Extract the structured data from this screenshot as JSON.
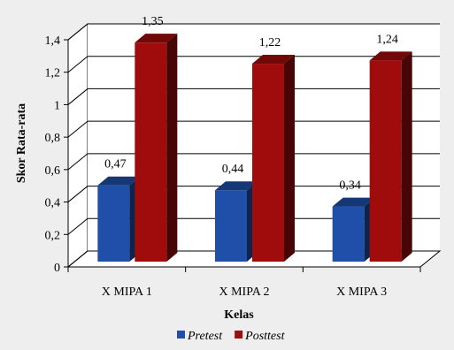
{
  "chart_data": {
    "type": "bar",
    "categories": [
      "X MIPA 1",
      "X MIPA 2",
      "X MIPA 3"
    ],
    "series": [
      {
        "name": "Pretest",
        "values": [
          0.47,
          0.44,
          0.34
        ],
        "labels": [
          "0,47",
          "0,44",
          "0,34"
        ],
        "color": "#1f4fa8"
      },
      {
        "name": "Posttest",
        "values": [
          1.35,
          1.22,
          1.24
        ],
        "labels": [
          "1,35",
          "1,22",
          "1,24"
        ],
        "color": "#a00c0c"
      }
    ],
    "xlabel": "Kelas",
    "ylabel": "Skor Rata-rata",
    "ylim": [
      0,
      1.4
    ],
    "yticks": [
      "0",
      "0,2",
      "0,4",
      "0,6",
      "0,8",
      "1",
      "1,2",
      "1,4"
    ],
    "grid": true,
    "legend_position": "bottom"
  }
}
